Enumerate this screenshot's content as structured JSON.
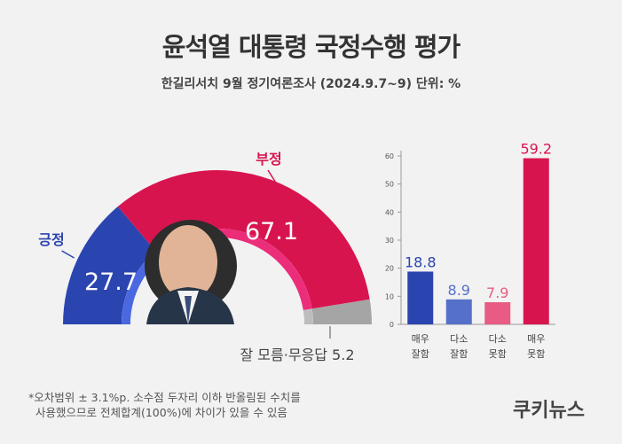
{
  "title": "윤석열 대통령 국정수행 평가",
  "subtitle": "한길리서치 9월 정기여론조사 (2024.9.7~9) 단위: %",
  "footnote": {
    "line1": "*오차범위 ± 3.1%p. 소수점 두자리 이하 반올림된 수치를",
    "line2": "사용했으므로 전체합계(100%)에 차이가 있을 수 있음"
  },
  "brand": "쿠키뉴스",
  "chart_data": [
    {
      "type": "pie",
      "slices": [
        {
          "label": "긍정",
          "value": 27.7,
          "color": "#2b45b0"
        },
        {
          "label": "부정",
          "value": 67.1,
          "color": "#d8144f"
        },
        {
          "label": "잘 모름·무응답",
          "value": 5.2,
          "color": "#a5a5a5"
        }
      ],
      "value_labels": {
        "pos": "27.7",
        "neg": "67.1",
        "dk": "잘 모름·무응답 5.2"
      }
    },
    {
      "type": "bar",
      "categories": [
        "매우 잘함",
        "다소 잘함",
        "다소 못함",
        "매우 못함"
      ],
      "category_lines": [
        [
          "매우",
          "잘함"
        ],
        [
          "다소",
          "잘함"
        ],
        [
          "다소",
          "못함"
        ],
        [
          "매우",
          "못함"
        ]
      ],
      "values": [
        18.8,
        8.9,
        7.9,
        59.2
      ],
      "value_labels": [
        "18.8",
        "8.9",
        "7.9",
        "59.2"
      ],
      "colors": [
        "#2b45b0",
        "#5570c8",
        "#e85c83",
        "#d8144f"
      ],
      "ylim": [
        0,
        60
      ],
      "yticks": [
        0,
        10,
        20,
        30,
        40,
        50,
        60
      ],
      "grid": false
    }
  ]
}
